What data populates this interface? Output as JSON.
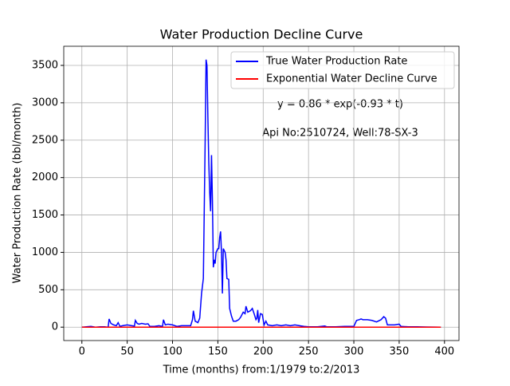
{
  "chart_data": {
    "type": "line",
    "title": "Water Production Decline Curve",
    "xlabel": "Time (months) from:1/1979 to:2/2013",
    "ylabel": "Water Production Rate (bbl/month)",
    "annotations": [
      "y = 0.86 * exp(-0.93 * t)",
      "Api No:2510724, Well:78-SX-3"
    ],
    "xlim": [
      -20,
      416
    ],
    "ylim": [
      -179,
      3756
    ],
    "xticks": [
      0,
      50,
      100,
      150,
      200,
      250,
      300,
      350,
      400
    ],
    "yticks": [
      0,
      500,
      1000,
      1500,
      2000,
      2500,
      3000,
      3500
    ],
    "grid": true,
    "legend": "upper right",
    "series": [
      {
        "name": "True Water Production Rate",
        "color": "#0000ff",
        "x": [
          0,
          5,
          10,
          15,
          20,
          25,
          29,
          30,
          32,
          35,
          38,
          40,
          42,
          45,
          50,
          55,
          58,
          59,
          61,
          63,
          66,
          70,
          73,
          75,
          80,
          85,
          89,
          90,
          92,
          95,
          100,
          105,
          110,
          115,
          120,
          122,
          123,
          125,
          128,
          130,
          132,
          134,
          136,
          137,
          138,
          139,
          140,
          141,
          142,
          143,
          144,
          145,
          146,
          147,
          148,
          150,
          151,
          152,
          153,
          154,
          155,
          156,
          158,
          159,
          160,
          162,
          163,
          165,
          167,
          170,
          173,
          175,
          178,
          180,
          181,
          183,
          186,
          188,
          190,
          192,
          193,
          194,
          195,
          197,
          199,
          201,
          203,
          205,
          210,
          215,
          220,
          225,
          230,
          235,
          240,
          245,
          250,
          260,
          268,
          270,
          280,
          290,
          300,
          303,
          306,
          308,
          310,
          315,
          320,
          325,
          330,
          333,
          335,
          337,
          340,
          345,
          350,
          352,
          360,
          370,
          380,
          390,
          396
        ],
        "values": [
          0,
          5,
          10,
          0,
          5,
          5,
          0,
          110,
          50,
          30,
          20,
          60,
          10,
          20,
          30,
          20,
          15,
          90,
          50,
          40,
          50,
          40,
          45,
          10,
          10,
          20,
          10,
          100,
          30,
          40,
          30,
          10,
          20,
          20,
          20,
          100,
          220,
          80,
          60,
          120,
          450,
          650,
          2500,
          3577,
          3500,
          2800,
          2200,
          1800,
          1550,
          2300,
          1700,
          800,
          900,
          850,
          1000,
          1050,
          1050,
          1200,
          1280,
          1000,
          450,
          1050,
          1000,
          900,
          650,
          640,
          250,
          150,
          80,
          80,
          100,
          130,
          200,
          180,
          280,
          200,
          220,
          250,
          180,
          100,
          120,
          230,
          60,
          180,
          170,
          30,
          80,
          30,
          20,
          30,
          20,
          30,
          20,
          30,
          20,
          10,
          5,
          5,
          15,
          5,
          5,
          10,
          10,
          90,
          100,
          110,
          100,
          100,
          90,
          70,
          100,
          140,
          120,
          30,
          30,
          30,
          40,
          10,
          5,
          5,
          2,
          1,
          0
        ]
      },
      {
        "name": "Exponential Water Decline Curve",
        "color": "#ff0000",
        "x": [
          0,
          1,
          2,
          3,
          396
        ],
        "values": [
          0.86,
          0.34,
          0.13,
          0.05,
          0
        ]
      }
    ]
  }
}
